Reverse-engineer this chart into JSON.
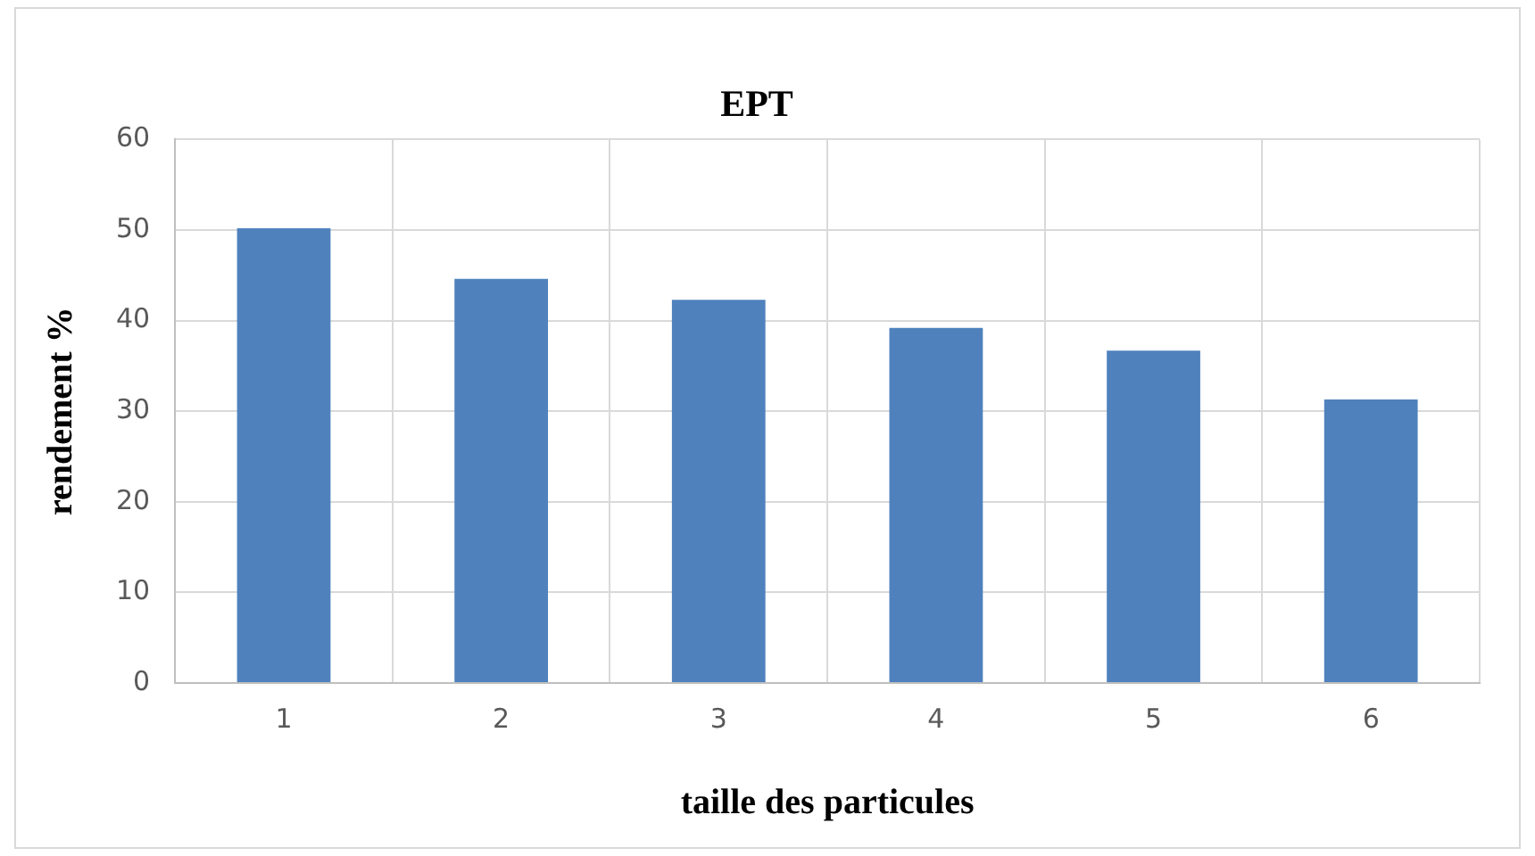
{
  "chart_data": {
    "type": "bar",
    "title": "EPT",
    "xlabel": "taille des particules",
    "ylabel": "rendement %",
    "categories": [
      "1",
      "2",
      "3",
      "4",
      "5",
      "6"
    ],
    "values": [
      50.2,
      44.6,
      42.3,
      39.2,
      36.7,
      31.3
    ],
    "color": "#4f81bd",
    "ylim": [
      0,
      60
    ],
    "yticks": [
      0,
      10,
      20,
      30,
      40,
      50,
      60
    ],
    "grid": true
  }
}
